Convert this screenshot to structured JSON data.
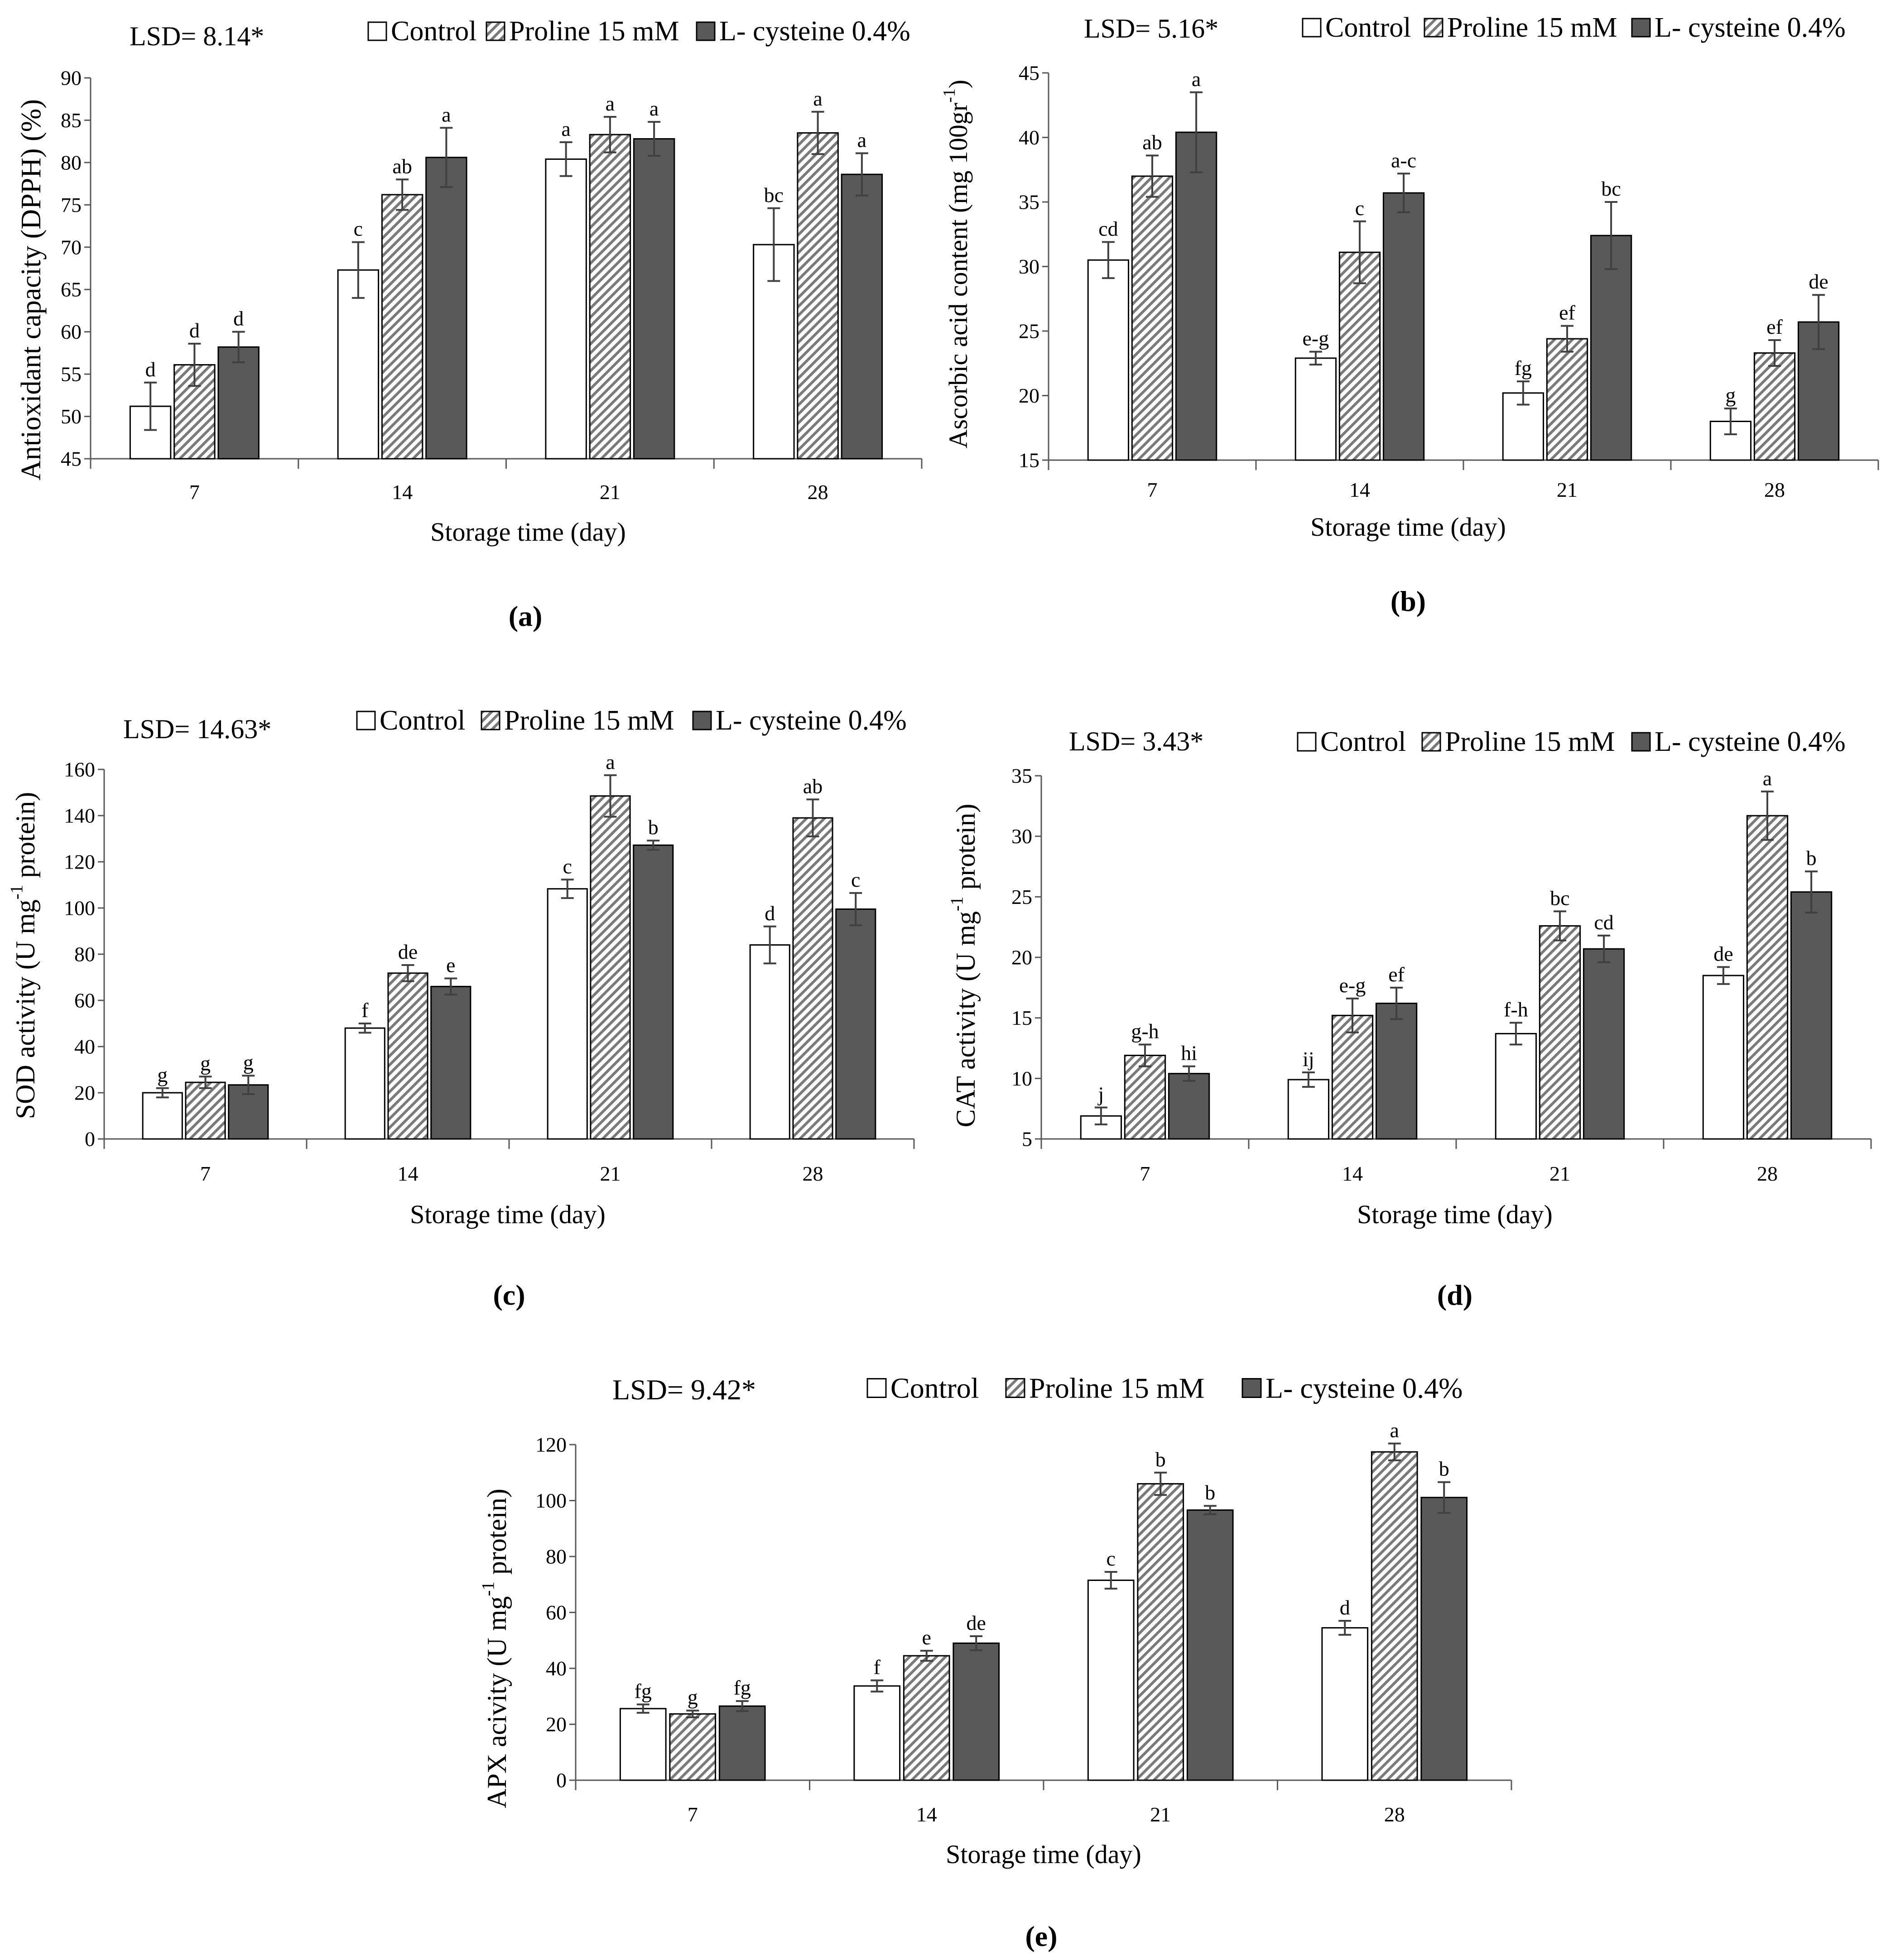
{
  "palette": [
    "#ffffff",
    "#7a7a7a",
    "#595959"
  ],
  "axis_color": "#595959",
  "error_color": "#404040",
  "chart_data": [
    {
      "panel": "(a)",
      "type": "bar",
      "grid": false,
      "legend_position": "top",
      "lsd": "LSD= 8.14*",
      "xlabel": "Storage time (day)",
      "ylabel": {
        "text": "Antioxidant capacity (DPPH) (%)"
      },
      "ylim": [
        45,
        90
      ],
      "yticks": [
        45,
        50,
        55,
        60,
        65,
        70,
        75,
        80,
        85,
        90
      ],
      "categories": [
        "7",
        "14",
        "21",
        "28"
      ],
      "series": [
        {
          "name": "Control",
          "values": [
            51.2,
            67.3,
            80.4,
            70.3
          ],
          "errors": [
            2.8,
            3.3,
            2.0,
            4.3
          ],
          "letters": [
            "d",
            "c",
            "a",
            "bc"
          ]
        },
        {
          "name": "Proline 15 mM",
          "values": [
            56.1,
            76.2,
            83.3,
            83.5
          ],
          "errors": [
            2.5,
            1.8,
            2.1,
            2.5
          ],
          "letters": [
            "d",
            "ab",
            "a",
            "a"
          ]
        },
        {
          "name": "L- cysteine 0.4%",
          "values": [
            58.2,
            80.6,
            82.8,
            78.6
          ],
          "errors": [
            1.8,
            3.5,
            2.0,
            2.5
          ],
          "letters": [
            "d",
            "a",
            "a",
            "a"
          ]
        }
      ]
    },
    {
      "panel": "(b)",
      "type": "bar",
      "grid": false,
      "legend_position": "top",
      "lsd": "LSD= 5.16*",
      "xlabel": "Storage time (day)",
      "ylabel": {
        "text": "Ascorbic acid content (mg 100gr",
        "sup": "-1",
        "after": ")"
      },
      "ylim": [
        15,
        45
      ],
      "yticks": [
        15,
        20,
        25,
        30,
        35,
        40,
        45
      ],
      "categories": [
        "7",
        "14",
        "21",
        "28"
      ],
      "series": [
        {
          "name": "Control",
          "values": [
            30.5,
            22.9,
            20.2,
            18.0
          ],
          "errors": [
            1.4,
            0.5,
            0.9,
            1.0
          ],
          "letters": [
            "cd",
            "e-g",
            "fg",
            "g"
          ]
        },
        {
          "name": "Proline 15 mM",
          "values": [
            37.0,
            31.1,
            24.4,
            23.3
          ],
          "errors": [
            1.6,
            2.4,
            1.0,
            1.0
          ],
          "letters": [
            "ab",
            "c",
            "ef",
            "ef"
          ]
        },
        {
          "name": "L- cysteine 0.4%",
          "values": [
            40.4,
            35.7,
            32.4,
            25.7
          ],
          "errors": [
            3.1,
            1.5,
            2.6,
            2.1
          ],
          "letters": [
            "a",
            "a-c",
            "bc",
            "de"
          ]
        }
      ]
    },
    {
      "panel": "(c)",
      "type": "bar",
      "grid": false,
      "legend_position": "top",
      "lsd": "LSD= 14.63*",
      "xlabel": "Storage time (day)",
      "ylabel": {
        "text": "SOD activity (U mg",
        "sup": "-1",
        "after": " protein)"
      },
      "ylim": [
        0,
        160
      ],
      "yticks": [
        0,
        20,
        40,
        60,
        80,
        100,
        120,
        140,
        160
      ],
      "categories": [
        "7",
        "14",
        "21",
        "28"
      ],
      "series": [
        {
          "name": "Control",
          "values": [
            20.0,
            48.0,
            108.3,
            84.0
          ],
          "errors": [
            2.0,
            2.0,
            4.0,
            8.0
          ],
          "letters": [
            "g",
            "f",
            "c",
            "d"
          ]
        },
        {
          "name": "Proline 15 mM",
          "values": [
            24.5,
            71.8,
            148.5,
            139.0
          ],
          "errors": [
            2.5,
            3.5,
            9.0,
            8.0
          ],
          "letters": [
            "g",
            "de",
            "a",
            "ab"
          ]
        },
        {
          "name": "L- cysteine 0.4%",
          "values": [
            23.4,
            66.0,
            127.2,
            99.5
          ],
          "errors": [
            4.0,
            3.5,
            2.0,
            7.0
          ],
          "letters": [
            "g",
            "e",
            "b",
            "c"
          ]
        }
      ]
    },
    {
      "panel": "(d)",
      "type": "bar",
      "grid": false,
      "legend_position": "top",
      "lsd": "LSD= 3.43*",
      "xlabel": "Storage time (day)",
      "ylabel": {
        "text": "CAT activity (U mg",
        "sup": "-1",
        "after": " protein)"
      },
      "ylim": [
        5,
        35
      ],
      "yticks": [
        5,
        10,
        15,
        20,
        25,
        30,
        35
      ],
      "categories": [
        "7",
        "14",
        "21",
        "28"
      ],
      "series": [
        {
          "name": "Control",
          "values": [
            6.9,
            9.9,
            13.7,
            18.5
          ],
          "errors": [
            0.7,
            0.6,
            0.9,
            0.7
          ],
          "letters": [
            "j",
            "ij",
            "f-h",
            "de"
          ]
        },
        {
          "name": "Proline 15 mM",
          "values": [
            11.9,
            15.2,
            22.6,
            31.7
          ],
          "errors": [
            0.9,
            1.4,
            1.2,
            2.0
          ],
          "letters": [
            "g-h",
            "e-g",
            "bc",
            "a"
          ]
        },
        {
          "name": "L- cysteine 0.4%",
          "values": [
            10.4,
            16.2,
            20.7,
            25.4
          ],
          "errors": [
            0.6,
            1.3,
            1.1,
            1.7
          ],
          "letters": [
            "hi",
            "ef",
            "cd",
            "b"
          ]
        }
      ]
    },
    {
      "panel": "(e)",
      "type": "bar",
      "grid": false,
      "legend_position": "top",
      "lsd": "LSD= 9.42*",
      "xlabel": "Storage time (day)",
      "ylabel": {
        "text": "APX acivity (U mg",
        "sup": "-1",
        "after": " protein)"
      },
      "ylim": [
        0,
        120
      ],
      "yticks": [
        0,
        20,
        40,
        60,
        80,
        100,
        120
      ],
      "categories": [
        "7",
        "14",
        "21",
        "28"
      ],
      "series": [
        {
          "name": "Control",
          "values": [
            25.6,
            33.7,
            71.5,
            54.5
          ],
          "errors": [
            1.5,
            2.0,
            3.0,
            2.5
          ],
          "letters": [
            "fg",
            "f",
            "c",
            "d"
          ]
        },
        {
          "name": "Proline 15 mM",
          "values": [
            23.7,
            44.5,
            106.0,
            117.4
          ],
          "errors": [
            1.2,
            1.8,
            4.0,
            3.0
          ],
          "letters": [
            "g",
            "e",
            "b",
            "a"
          ]
        },
        {
          "name": "L- cysteine 0.4%",
          "values": [
            26.5,
            49.0,
            96.6,
            101.1
          ],
          "errors": [
            1.8,
            2.5,
            1.5,
            5.5
          ],
          "letters": [
            "fg",
            "de",
            "b",
            "b"
          ]
        }
      ]
    }
  ]
}
